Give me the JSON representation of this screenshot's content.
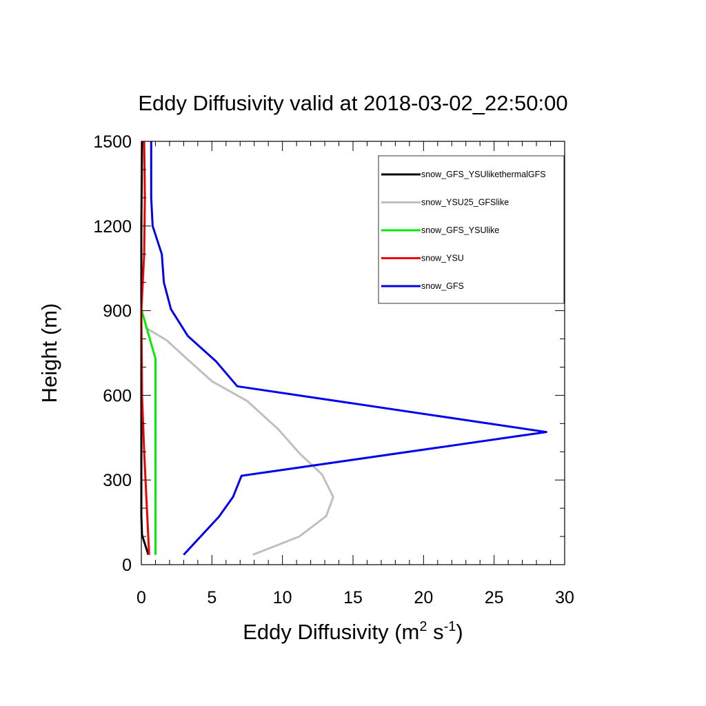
{
  "chart_data": {
    "type": "line",
    "title": "Eddy Diffusivity valid at 2018-03-02_22:50:00",
    "xlabel": {
      "main": "Eddy Diffusivity (m",
      "sup1": "2",
      "mid": " s",
      "sup2": "-1",
      "end": ")"
    },
    "ylabel": "Height (m)",
    "xlim": [
      0,
      30
    ],
    "ylim": [
      0,
      1500
    ],
    "x_ticks": [
      0,
      5,
      10,
      15,
      20,
      25,
      30
    ],
    "y_ticks": [
      0,
      300,
      600,
      900,
      1200,
      1500
    ],
    "x_tick_labels": [
      "0",
      "5",
      "10",
      "15",
      "20",
      "25",
      "30"
    ],
    "y_tick_labels": [
      "0",
      "300",
      "600",
      "900",
      "1200",
      "1500"
    ],
    "grid": false,
    "legend_position": "top-right",
    "series": [
      {
        "name": "snow_GFS_YSUlikethermalGFS",
        "color": "#000000",
        "points": [
          [
            0.5,
            35
          ],
          [
            0.05,
            105
          ],
          [
            0.0,
            175
          ],
          [
            0.0,
            300
          ],
          [
            0.0,
            600
          ],
          [
            0.0,
            900
          ],
          [
            0.0,
            1200
          ],
          [
            0.05,
            1500
          ]
        ]
      },
      {
        "name": "snow_YSU25_GFSlike",
        "color": "#bfbfbf",
        "points": [
          [
            7.9,
            35
          ],
          [
            11.2,
            100
          ],
          [
            13.1,
            172
          ],
          [
            13.6,
            240
          ],
          [
            12.8,
            320
          ],
          [
            11.2,
            395
          ],
          [
            9.7,
            480
          ],
          [
            7.5,
            580
          ],
          [
            5.0,
            650
          ],
          [
            3.0,
            740
          ],
          [
            1.8,
            795
          ],
          [
            0.3,
            840
          ]
        ]
      },
      {
        "name": "snow_GFS_YSUlike",
        "color": "#00ee00",
        "points": [
          [
            1.0,
            35
          ],
          [
            1.0,
            100
          ],
          [
            1.0,
            300
          ],
          [
            1.0,
            500
          ],
          [
            1.0,
            730
          ],
          [
            0.0,
            905
          ]
        ]
      },
      {
        "name": "snow_YSU",
        "color": "#ee0000",
        "points": [
          [
            0.55,
            35
          ],
          [
            0.2,
            400
          ],
          [
            0.05,
            600
          ],
          [
            0.0,
            900
          ],
          [
            0.2,
            1100
          ],
          [
            0.25,
            1300
          ],
          [
            0.2,
            1500
          ]
        ]
      },
      {
        "name": "snow_GFS",
        "color": "#0000ee",
        "points": [
          [
            3.0,
            35
          ],
          [
            5.5,
            170
          ],
          [
            6.5,
            240
          ],
          [
            7.1,
            315
          ],
          [
            28.7,
            470
          ],
          [
            6.8,
            632
          ],
          [
            5.3,
            720
          ],
          [
            3.3,
            810
          ],
          [
            2.1,
            905
          ],
          [
            1.6,
            1000
          ],
          [
            1.45,
            1100
          ],
          [
            0.8,
            1200
          ],
          [
            0.7,
            1300
          ],
          [
            0.7,
            1500
          ]
        ]
      }
    ]
  }
}
